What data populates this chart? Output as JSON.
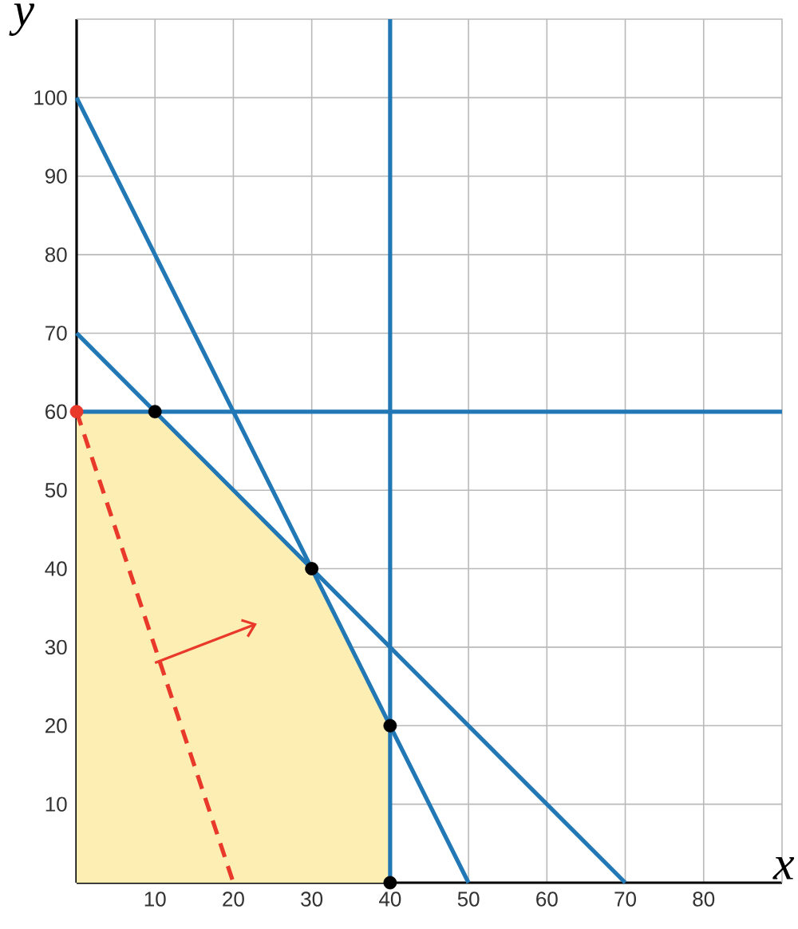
{
  "chart_data": {
    "type": "line",
    "xlabel": "x",
    "ylabel": "y",
    "xlim": [
      0,
      90
    ],
    "ylim": [
      0,
      110
    ],
    "xticks": [
      10,
      20,
      30,
      40,
      50,
      60,
      70,
      80
    ],
    "yticks": [
      10,
      20,
      30,
      40,
      50,
      60,
      70,
      80,
      90,
      100
    ],
    "grid": true,
    "series": [
      {
        "type": "area",
        "color": "#fdeeb3",
        "x": [
          0,
          10,
          30,
          40
        ],
        "values": [
          60,
          60,
          40,
          20
        ]
      },
      {
        "color": "#2277b5",
        "x": [
          0,
          50
        ],
        "values": [
          100,
          0
        ]
      },
      {
        "color": "#2277b5",
        "x": [
          0,
          70
        ],
        "values": [
          70,
          0
        ]
      },
      {
        "color": "#2277b5",
        "x": [
          40,
          40
        ],
        "values": [
          0,
          110
        ]
      },
      {
        "color": "#2277b5",
        "x": [
          0,
          90
        ],
        "values": [
          60,
          60
        ]
      },
      {
        "color": "#e8392b",
        "line_style": "dashed",
        "x": [
          0,
          20
        ],
        "values": [
          60,
          0
        ]
      },
      {
        "type": "scatter",
        "marker": "circle",
        "color": "#000000",
        "x": [
          10,
          30,
          40,
          40
        ],
        "values": [
          60,
          40,
          20,
          0
        ]
      },
      {
        "type": "scatter",
        "marker": "circle",
        "color": "#e8392b",
        "x": [
          0
        ],
        "values": [
          60
        ]
      }
    ]
  }
}
